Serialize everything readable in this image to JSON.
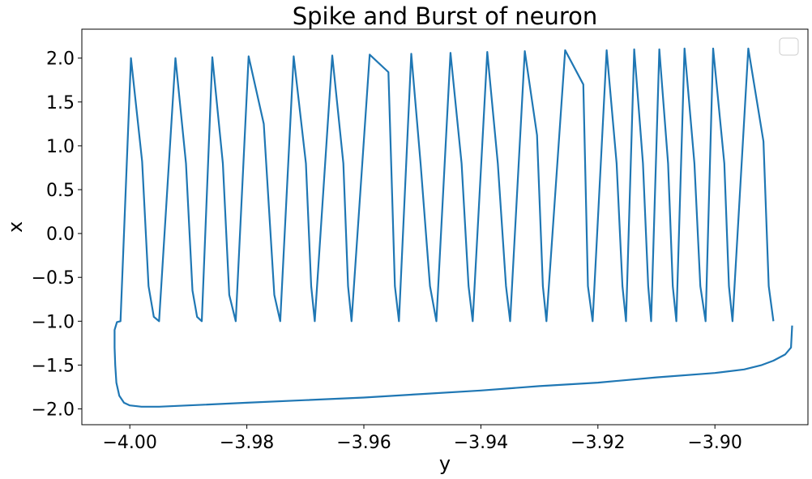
{
  "chart_data": {
    "type": "line",
    "title": "Spike and Burst of neuron",
    "xlabel": "y",
    "ylabel": "x",
    "xlim": [
      -4.0082,
      -3.8841
    ],
    "ylim": [
      -2.18,
      2.33
    ],
    "xticks": [
      -4.0,
      -3.98,
      -3.96,
      -3.94,
      -3.92,
      -3.9
    ],
    "xtick_labels": [
      "−4.00",
      "−3.98",
      "−3.96",
      "−3.94",
      "−3.92",
      "−3.90"
    ],
    "yticks": [
      2.0,
      1.5,
      1.0,
      0.5,
      0.0,
      -0.5,
      -1.0,
      -1.5,
      -2.0
    ],
    "ytick_labels": [
      "2.0",
      "1.5",
      "1.0",
      "0.5",
      "0.0",
      "−0.5",
      "−1.0",
      "−1.5",
      "−2.0"
    ],
    "grid": false,
    "legend": {
      "placement": "top-right",
      "entries": []
    },
    "series": [
      {
        "color": "#1f77b4",
        "points": [
          [
            -3.8868,
            -1.05
          ],
          [
            -3.887,
            -1.3
          ],
          [
            -3.888,
            -1.38
          ],
          [
            -3.89,
            -1.45
          ],
          [
            -3.892,
            -1.5
          ],
          [
            -3.895,
            -1.55
          ],
          [
            -3.9,
            -1.59
          ],
          [
            -3.91,
            -1.64
          ],
          [
            -3.92,
            -1.7
          ],
          [
            -3.93,
            -1.74
          ],
          [
            -3.94,
            -1.79
          ],
          [
            -3.95,
            -1.83
          ],
          [
            -3.96,
            -1.87
          ],
          [
            -3.97,
            -1.9
          ],
          [
            -3.98,
            -1.93
          ],
          [
            -3.99,
            -1.96
          ],
          [
            -3.995,
            -1.975
          ],
          [
            -3.998,
            -1.975
          ],
          [
            -4.0,
            -1.96
          ],
          [
            -4.001,
            -1.93
          ],
          [
            -4.0018,
            -1.85
          ],
          [
            -4.0023,
            -1.7
          ],
          [
            -4.0025,
            -1.5
          ],
          [
            -4.0026,
            -1.3
          ],
          [
            -4.0026,
            -1.1
          ],
          [
            -4.0022,
            -1.01
          ],
          [
            -4.0016,
            -1.0
          ],
          [
            -3.9998,
            2.0
          ],
          [
            -3.9979,
            0.82
          ],
          [
            -3.9968,
            -0.6
          ],
          [
            -3.9959,
            -0.95
          ],
          [
            -3.995,
            -1.0
          ],
          [
            -3.9922,
            2.0
          ],
          [
            -3.9904,
            0.8
          ],
          [
            -3.9893,
            -0.65
          ],
          [
            -3.9885,
            -0.95
          ],
          [
            -3.9877,
            -1.0
          ],
          [
            -3.9859,
            2.01
          ],
          [
            -3.9841,
            0.8
          ],
          [
            -3.983,
            -0.7
          ],
          [
            -3.9819,
            -1.0
          ],
          [
            -3.9797,
            2.02
          ],
          [
            -3.9771,
            1.25
          ],
          [
            -3.9753,
            -0.7
          ],
          [
            -3.9743,
            -1.0
          ],
          [
            -3.972,
            2.02
          ],
          [
            -3.9699,
            0.8
          ],
          [
            -3.969,
            -0.6
          ],
          [
            -3.9684,
            -1.0
          ],
          [
            -3.9654,
            2.03
          ],
          [
            -3.9635,
            0.8
          ],
          [
            -3.9627,
            -0.6
          ],
          [
            -3.9621,
            -1.0
          ],
          [
            -3.959,
            2.04
          ],
          [
            -3.9558,
            1.84
          ],
          [
            -3.9547,
            -0.6
          ],
          [
            -3.954,
            -1.0
          ],
          [
            -3.9519,
            2.05
          ],
          [
            -3.9503,
            0.8
          ],
          [
            -3.9487,
            -0.6
          ],
          [
            -3.9476,
            -1.0
          ],
          [
            -3.9452,
            2.06
          ],
          [
            -3.9433,
            0.8
          ],
          [
            -3.9421,
            -0.6
          ],
          [
            -3.9414,
            -1.0
          ],
          [
            -3.9389,
            2.07
          ],
          [
            -3.9371,
            0.8
          ],
          [
            -3.9357,
            -0.6
          ],
          [
            -3.935,
            -1.0
          ],
          [
            -3.9325,
            2.08
          ],
          [
            -3.9304,
            1.12
          ],
          [
            -3.9294,
            -0.6
          ],
          [
            -3.9288,
            -1.0
          ],
          [
            -3.9256,
            2.09
          ],
          [
            -3.9225,
            1.7
          ],
          [
            -3.9217,
            -0.6
          ],
          [
            -3.9209,
            -1.0
          ],
          [
            -3.9185,
            2.09
          ],
          [
            -3.9168,
            0.8
          ],
          [
            -3.9158,
            -0.6
          ],
          [
            -3.9152,
            -1.0
          ],
          [
            -3.9138,
            2.1
          ],
          [
            -3.9123,
            0.8
          ],
          [
            -3.9114,
            -0.6
          ],
          [
            -3.9109,
            -1.0
          ],
          [
            -3.9095,
            2.1
          ],
          [
            -3.908,
            0.8
          ],
          [
            -3.9072,
            -0.6
          ],
          [
            -3.9066,
            -1.0
          ],
          [
            -3.9052,
            2.11
          ],
          [
            -3.9035,
            0.8
          ],
          [
            -3.9025,
            -0.6
          ],
          [
            -3.9016,
            -1.0
          ],
          [
            -3.9003,
            2.11
          ],
          [
            -3.8984,
            0.8
          ],
          [
            -3.8976,
            -0.6
          ],
          [
            -3.897,
            -1.0
          ],
          [
            -3.8943,
            2.11
          ],
          [
            -3.8917,
            1.05
          ],
          [
            -3.8908,
            -0.6
          ],
          [
            -3.89,
            -1.0
          ]
        ]
      }
    ]
  }
}
